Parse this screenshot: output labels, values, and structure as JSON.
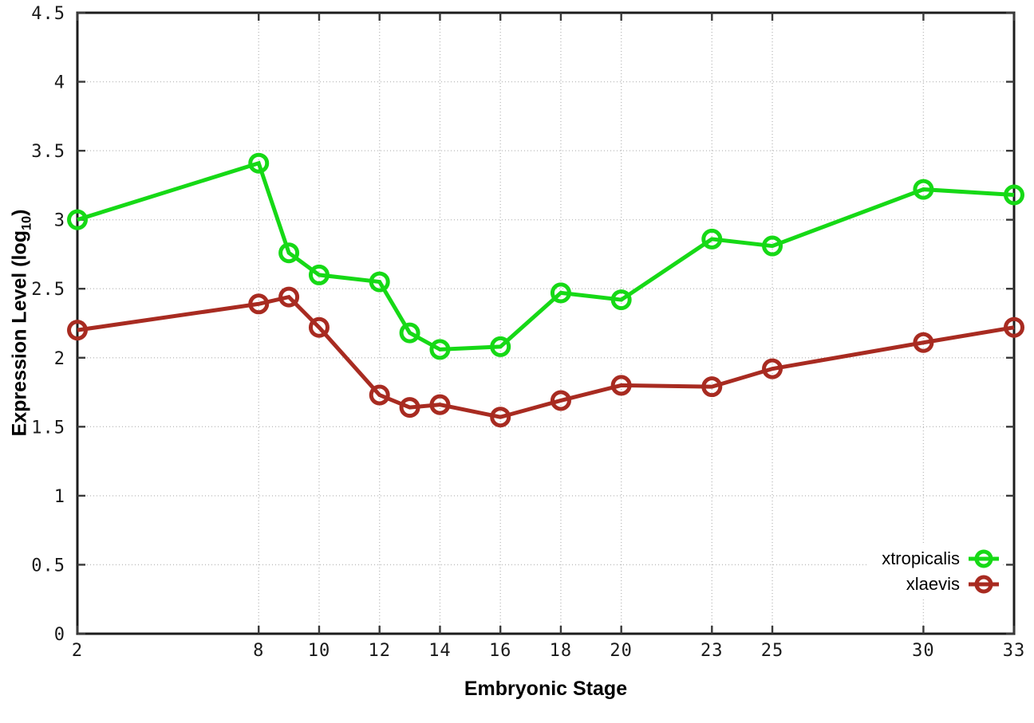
{
  "chart_data": {
    "type": "line",
    "xlabel": "Embryonic Stage",
    "ylabel": "Expression Level (log10)",
    "ylabel_prefix": "Expression Level (log",
    "ylabel_sub": "10",
    "ylabel_suffix": ")",
    "x": [
      2,
      8,
      9,
      10,
      12,
      13,
      14,
      16,
      18,
      20,
      23,
      25,
      30,
      33
    ],
    "series": [
      {
        "name": "xtropicalis",
        "color": "#16d916",
        "marker": "open-circle",
        "values": [
          3.0,
          3.41,
          2.76,
          2.6,
          2.55,
          2.18,
          2.06,
          2.08,
          2.47,
          2.42,
          2.86,
          2.81,
          3.22,
          3.18
        ]
      },
      {
        "name": "xlaevis",
        "color": "#a82b21",
        "marker": "open-circle",
        "values": [
          2.2,
          2.39,
          2.44,
          2.22,
          1.73,
          1.64,
          1.66,
          1.57,
          1.69,
          1.8,
          1.79,
          1.92,
          2.11,
          2.22
        ]
      }
    ],
    "xlim": [
      2,
      33
    ],
    "ylim": [
      0,
      4.5
    ],
    "xticks": [
      2,
      8,
      10,
      12,
      14,
      16,
      18,
      20,
      23,
      25,
      30,
      33
    ],
    "xtick_labels": [
      "2",
      "8",
      "10",
      "12",
      "14",
      "16",
      "18",
      "20",
      "23",
      "25",
      "30",
      "33"
    ],
    "yticks": [
      0,
      0.5,
      1,
      1.5,
      2,
      2.5,
      3,
      3.5,
      4,
      4.5
    ],
    "ytick_labels": [
      "0",
      "0.5",
      "1",
      "1.5",
      "2",
      "2.5",
      "3",
      "3.5",
      "4",
      "4.5"
    ],
    "grid": true,
    "legend_position": "bottom-right",
    "background_color": "#ffffff",
    "grid_color": "#bdbdbd",
    "border_color": "#1c1c1c"
  }
}
